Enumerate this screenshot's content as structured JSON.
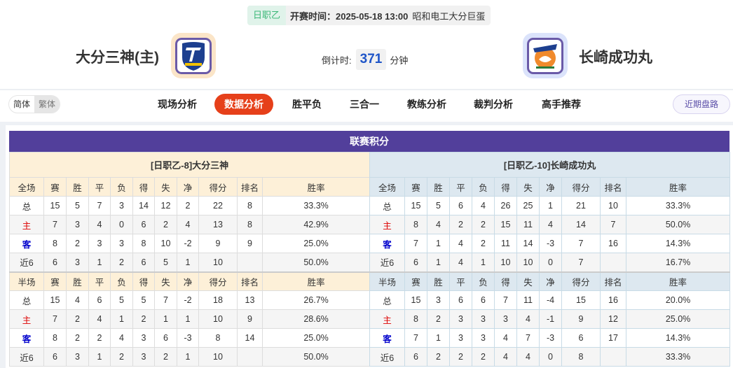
{
  "match": {
    "league": "日职乙",
    "time_label": "开赛时间：2025-05-18 13:00",
    "venue": "昭和电工大分巨蛋",
    "home_team": "大分三神(主)",
    "away_team": "长崎成功丸",
    "countdown_label": "倒计时:",
    "countdown_value": "371",
    "countdown_unit": "分钟"
  },
  "nav": {
    "lang": [
      "简体",
      "繁体"
    ],
    "tabs": [
      "现场分析",
      "数据分析",
      "胜平负",
      "三合一",
      "教练分析",
      "裁判分析",
      "高手推荐"
    ],
    "active_tab": "数据分析",
    "recent_button": "近期盘路"
  },
  "colors": {
    "title_bar": "#523f9b",
    "active_tab": "#e6401a",
    "home": "#dd0000",
    "away": "#0000cc"
  },
  "standings": {
    "title": "联赛积分",
    "columns": [
      "赛",
      "胜",
      "平",
      "负",
      "得",
      "失",
      "净",
      "得分",
      "排名",
      "胜率"
    ],
    "full_label": "全场",
    "half_label": "半场",
    "home": {
      "header": "[日职乙-8]大分三神",
      "full": [
        [
          "总",
          "15",
          "5",
          "7",
          "3",
          "14",
          "12",
          "2",
          "22",
          "8",
          "33.3%"
        ],
        [
          "主",
          "7",
          "3",
          "4",
          "0",
          "6",
          "2",
          "4",
          "13",
          "8",
          "42.9%"
        ],
        [
          "客",
          "8",
          "2",
          "3",
          "3",
          "8",
          "10",
          "-2",
          "9",
          "9",
          "25.0%"
        ],
        [
          "近6",
          "6",
          "3",
          "1",
          "2",
          "6",
          "5",
          "1",
          "10",
          "",
          "50.0%"
        ]
      ],
      "half": [
        [
          "总",
          "15",
          "4",
          "6",
          "5",
          "5",
          "7",
          "-2",
          "18",
          "13",
          "26.7%"
        ],
        [
          "主",
          "7",
          "2",
          "4",
          "1",
          "2",
          "1",
          "1",
          "10",
          "9",
          "28.6%"
        ],
        [
          "客",
          "8",
          "2",
          "2",
          "4",
          "3",
          "6",
          "-3",
          "8",
          "14",
          "25.0%"
        ],
        [
          "近6",
          "6",
          "3",
          "1",
          "2",
          "3",
          "2",
          "1",
          "10",
          "",
          "50.0%"
        ]
      ]
    },
    "away": {
      "header": "[日职乙-10]长崎成功丸",
      "full": [
        [
          "总",
          "15",
          "5",
          "6",
          "4",
          "26",
          "25",
          "1",
          "21",
          "10",
          "33.3%"
        ],
        [
          "主",
          "8",
          "4",
          "2",
          "2",
          "15",
          "11",
          "4",
          "14",
          "7",
          "50.0%"
        ],
        [
          "客",
          "7",
          "1",
          "4",
          "2",
          "11",
          "14",
          "-3",
          "7",
          "16",
          "14.3%"
        ],
        [
          "近6",
          "6",
          "1",
          "4",
          "1",
          "10",
          "10",
          "0",
          "7",
          "",
          "16.7%"
        ]
      ],
      "half": [
        [
          "总",
          "15",
          "3",
          "6",
          "6",
          "7",
          "11",
          "-4",
          "15",
          "16",
          "20.0%"
        ],
        [
          "主",
          "8",
          "2",
          "3",
          "3",
          "3",
          "4",
          "-1",
          "9",
          "12",
          "25.0%"
        ],
        [
          "客",
          "7",
          "1",
          "3",
          "3",
          "4",
          "7",
          "-3",
          "6",
          "17",
          "14.3%"
        ],
        [
          "近6",
          "6",
          "2",
          "2",
          "2",
          "4",
          "4",
          "0",
          "8",
          "",
          "33.3%"
        ]
      ]
    }
  }
}
